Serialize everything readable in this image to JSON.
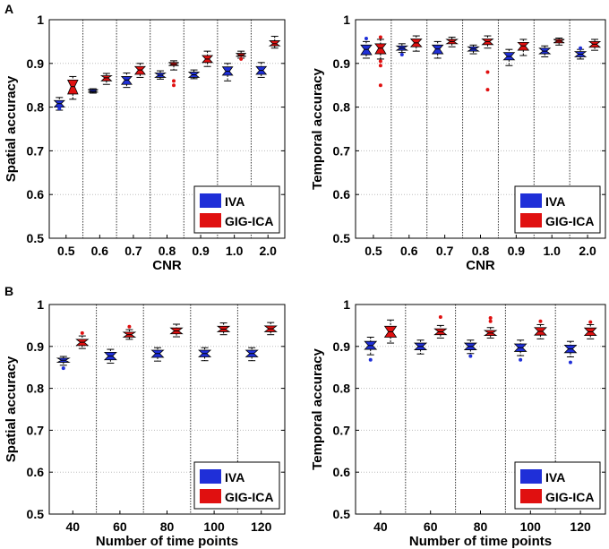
{
  "panel_labels": [
    "A",
    "B"
  ],
  "legend": {
    "entries": [
      {
        "name": "IVA",
        "color": "#1f2fd8"
      },
      {
        "name": "GIG-ICA",
        "color": "#e01010"
      }
    ]
  },
  "chart_data": [
    {
      "type": "box",
      "panel": "A",
      "ylabel": "Spatial accuracy",
      "xlabel": "CNR",
      "categories": [
        "0.5",
        "0.6",
        "0.7",
        "0.8",
        "0.9",
        "1.0",
        "2.0"
      ],
      "ylim": [
        0.5,
        1
      ],
      "yticks": [
        "0.5",
        "0.6",
        "0.7",
        "0.8",
        "0.9",
        "1"
      ],
      "series": [
        {
          "name": "IVA",
          "boxes": [
            {
              "q1": 0.8,
              "median": 0.808,
              "q3": 0.815,
              "wlo": 0.793,
              "whi": 0.822,
              "outliers": [
                0.797
              ]
            },
            {
              "q1": 0.834,
              "median": 0.836,
              "q3": 0.84,
              "wlo": 0.832,
              "whi": 0.842,
              "outliers": []
            },
            {
              "q1": 0.852,
              "median": 0.862,
              "q3": 0.87,
              "wlo": 0.845,
              "whi": 0.878,
              "outliers": []
            },
            {
              "q1": 0.868,
              "median": 0.873,
              "q3": 0.878,
              "wlo": 0.864,
              "whi": 0.883,
              "outliers": []
            },
            {
              "q1": 0.868,
              "median": 0.874,
              "q3": 0.88,
              "wlo": 0.865,
              "whi": 0.885,
              "outliers": []
            },
            {
              "q1": 0.873,
              "median": 0.882,
              "q3": 0.892,
              "wlo": 0.86,
              "whi": 0.9,
              "outliers": []
            },
            {
              "q1": 0.875,
              "median": 0.884,
              "q3": 0.893,
              "wlo": 0.868,
              "whi": 0.902,
              "outliers": []
            }
          ]
        },
        {
          "name": "GIG-ICA",
          "boxes": [
            {
              "q1": 0.83,
              "median": 0.847,
              "q3": 0.862,
              "wlo": 0.818,
              "whi": 0.87,
              "outliers": []
            },
            {
              "q1": 0.86,
              "median": 0.867,
              "q3": 0.872,
              "wlo": 0.852,
              "whi": 0.877,
              "outliers": []
            },
            {
              "q1": 0.875,
              "median": 0.885,
              "q3": 0.893,
              "wlo": 0.868,
              "whi": 0.9,
              "outliers": []
            },
            {
              "q1": 0.895,
              "median": 0.898,
              "q3": 0.902,
              "wlo": 0.885,
              "whi": 0.906,
              "outliers": [
                0.86,
                0.85
              ]
            },
            {
              "q1": 0.902,
              "median": 0.91,
              "q3": 0.918,
              "wlo": 0.893,
              "whi": 0.928,
              "outliers": []
            },
            {
              "q1": 0.916,
              "median": 0.919,
              "q3": 0.923,
              "wlo": 0.912,
              "whi": 0.928,
              "outliers": [
                0.91
              ]
            },
            {
              "q1": 0.94,
              "median": 0.945,
              "q3": 0.952,
              "wlo": 0.935,
              "whi": 0.962,
              "outliers": []
            }
          ]
        }
      ]
    },
    {
      "type": "box",
      "panel": "A",
      "ylabel": "Temporal accuracy",
      "xlabel": "CNR",
      "categories": [
        "0.5",
        "0.6",
        "0.7",
        "0.8",
        "0.9",
        "1.0",
        "2.0"
      ],
      "ylim": [
        0.5,
        1
      ],
      "yticks": [
        "0.5",
        "0.6",
        "0.7",
        "0.8",
        "0.9",
        "1"
      ],
      "series": [
        {
          "name": "IVA",
          "boxes": [
            {
              "q1": 0.92,
              "median": 0.932,
              "q3": 0.942,
              "wlo": 0.912,
              "whi": 0.95,
              "outliers": [
                0.957
              ]
            },
            {
              "q1": 0.93,
              "median": 0.935,
              "q3": 0.94,
              "wlo": 0.925,
              "whi": 0.945,
              "outliers": [
                0.92
              ]
            },
            {
              "q1": 0.922,
              "median": 0.933,
              "q3": 0.942,
              "wlo": 0.912,
              "whi": 0.95,
              "outliers": []
            },
            {
              "q1": 0.928,
              "median": 0.933,
              "q3": 0.938,
              "wlo": 0.922,
              "whi": 0.942,
              "outliers": []
            },
            {
              "q1": 0.908,
              "median": 0.916,
              "q3": 0.925,
              "wlo": 0.895,
              "whi": 0.932,
              "outliers": []
            },
            {
              "q1": 0.922,
              "median": 0.928,
              "q3": 0.935,
              "wlo": 0.915,
              "whi": 0.94,
              "outliers": []
            },
            {
              "q1": 0.915,
              "median": 0.921,
              "q3": 0.927,
              "wlo": 0.91,
              "whi": 0.932,
              "outliers": [
                0.935
              ]
            }
          ]
        },
        {
          "name": "GIG-ICA",
          "boxes": [
            {
              "q1": 0.922,
              "median": 0.935,
              "q3": 0.945,
              "wlo": 0.91,
              "whi": 0.955,
              "outliers": [
                0.96,
                0.905,
                0.895,
                0.85
              ]
            },
            {
              "q1": 0.938,
              "median": 0.947,
              "q3": 0.956,
              "wlo": 0.928,
              "whi": 0.963,
              "outliers": []
            },
            {
              "q1": 0.945,
              "median": 0.95,
              "q3": 0.955,
              "wlo": 0.938,
              "whi": 0.96,
              "outliers": []
            },
            {
              "q1": 0.943,
              "median": 0.95,
              "q3": 0.956,
              "wlo": 0.935,
              "whi": 0.963,
              "outliers": [
                0.88,
                0.84
              ]
            },
            {
              "q1": 0.93,
              "median": 0.94,
              "q3": 0.948,
              "wlo": 0.918,
              "whi": 0.955,
              "outliers": []
            },
            {
              "q1": 0.947,
              "median": 0.951,
              "q3": 0.955,
              "wlo": 0.942,
              "whi": 0.958,
              "outliers": []
            },
            {
              "q1": 0.937,
              "median": 0.944,
              "q3": 0.95,
              "wlo": 0.93,
              "whi": 0.955,
              "outliers": []
            }
          ]
        }
      ]
    },
    {
      "type": "box",
      "panel": "B",
      "ylabel": "Spatial accuracy",
      "xlabel": "Number of time points",
      "categories": [
        "40",
        "60",
        "80",
        "100",
        "120"
      ],
      "ylim": [
        0.5,
        1
      ],
      "yticks": [
        "0.5",
        "0.6",
        "0.7",
        "0.8",
        "0.9",
        "1"
      ],
      "series": [
        {
          "name": "IVA",
          "boxes": [
            {
              "q1": 0.862,
              "median": 0.867,
              "q3": 0.872,
              "wlo": 0.855,
              "whi": 0.876,
              "outliers": [
                0.848
              ]
            },
            {
              "q1": 0.868,
              "median": 0.877,
              "q3": 0.886,
              "wlo": 0.86,
              "whi": 0.893,
              "outliers": []
            },
            {
              "q1": 0.874,
              "median": 0.883,
              "q3": 0.891,
              "wlo": 0.865,
              "whi": 0.897,
              "outliers": []
            },
            {
              "q1": 0.875,
              "median": 0.883,
              "q3": 0.891,
              "wlo": 0.866,
              "whi": 0.897,
              "outliers": []
            },
            {
              "q1": 0.875,
              "median": 0.883,
              "q3": 0.891,
              "wlo": 0.866,
              "whi": 0.897,
              "outliers": []
            }
          ]
        },
        {
          "name": "GIG-ICA",
          "boxes": [
            {
              "q1": 0.902,
              "median": 0.91,
              "q3": 0.917,
              "wlo": 0.895,
              "whi": 0.925,
              "outliers": [
                0.932
              ]
            },
            {
              "q1": 0.922,
              "median": 0.928,
              "q3": 0.934,
              "wlo": 0.917,
              "whi": 0.94,
              "outliers": [
                0.947
              ]
            },
            {
              "q1": 0.93,
              "median": 0.937,
              "q3": 0.944,
              "wlo": 0.923,
              "whi": 0.953,
              "outliers": []
            },
            {
              "q1": 0.935,
              "median": 0.941,
              "q3": 0.948,
              "wlo": 0.928,
              "whi": 0.956,
              "outliers": []
            },
            {
              "q1": 0.935,
              "median": 0.942,
              "q3": 0.949,
              "wlo": 0.928,
              "whi": 0.957,
              "outliers": []
            }
          ]
        }
      ]
    },
    {
      "type": "box",
      "panel": "B",
      "ylabel": "Temporal accuracy",
      "xlabel": "Number of time points",
      "categories": [
        "40",
        "60",
        "80",
        "100",
        "120"
      ],
      "ylim": [
        0.5,
        1
      ],
      "yticks": [
        "0.5",
        "0.6",
        "0.7",
        "0.8",
        "0.9",
        "1"
      ],
      "series": [
        {
          "name": "IVA",
          "boxes": [
            {
              "q1": 0.893,
              "median": 0.902,
              "q3": 0.912,
              "wlo": 0.88,
              "whi": 0.922,
              "outliers": [
                0.868
              ]
            },
            {
              "q1": 0.892,
              "median": 0.9,
              "q3": 0.908,
              "wlo": 0.882,
              "whi": 0.915,
              "outliers": []
            },
            {
              "q1": 0.892,
              "median": 0.9,
              "q3": 0.908,
              "wlo": 0.883,
              "whi": 0.915,
              "outliers": [
                0.877
              ]
            },
            {
              "q1": 0.888,
              "median": 0.897,
              "q3": 0.906,
              "wlo": 0.878,
              "whi": 0.915,
              "outliers": [
                0.868
              ]
            },
            {
              "q1": 0.885,
              "median": 0.894,
              "q3": 0.903,
              "wlo": 0.875,
              "whi": 0.912,
              "outliers": [
                0.862
              ]
            }
          ]
        },
        {
          "name": "GIG-ICA",
          "boxes": [
            {
              "q1": 0.922,
              "median": 0.935,
              "q3": 0.948,
              "wlo": 0.908,
              "whi": 0.963,
              "outliers": []
            },
            {
              "q1": 0.928,
              "median": 0.935,
              "q3": 0.942,
              "wlo": 0.92,
              "whi": 0.95,
              "outliers": [
                0.97
              ]
            },
            {
              "q1": 0.926,
              "median": 0.932,
              "q3": 0.938,
              "wlo": 0.92,
              "whi": 0.945,
              "outliers": [
                0.968,
                0.96
              ]
            },
            {
              "q1": 0.927,
              "median": 0.936,
              "q3": 0.945,
              "wlo": 0.918,
              "whi": 0.952,
              "outliers": [
                0.96
              ]
            },
            {
              "q1": 0.926,
              "median": 0.935,
              "q3": 0.944,
              "wlo": 0.918,
              "whi": 0.952,
              "outliers": [
                0.958
              ]
            }
          ]
        }
      ]
    }
  ]
}
